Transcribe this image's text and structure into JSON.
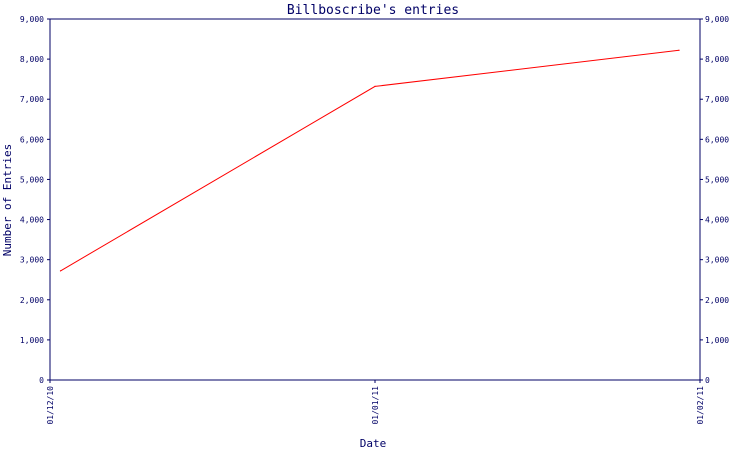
{
  "chart_data": {
    "type": "line",
    "title": "Billboscribe's entries",
    "xlabel": "Date",
    "ylabel": "Number of Entries",
    "x_ticks": [
      "01/12/10",
      "01/01/11",
      "01/02/11"
    ],
    "y_ticks": [
      "0",
      "1,000",
      "2,000",
      "3,000",
      "4,000",
      "5,000",
      "6,000",
      "7,000",
      "8,000",
      "9,000"
    ],
    "ylim": [
      0,
      9000
    ],
    "xlim": [
      "2010-12-01",
      "2011-02-01"
    ],
    "grid": false,
    "series": [
      {
        "x": [
          "2010-12-02",
          "2011-01-01",
          "2011-01-30"
        ],
        "values": [
          2720,
          7320,
          8220
        ]
      }
    ],
    "colors": {
      "axis": "#000066",
      "text": "#000066",
      "line": "#ff0000",
      "background": "#ffffff"
    }
  }
}
